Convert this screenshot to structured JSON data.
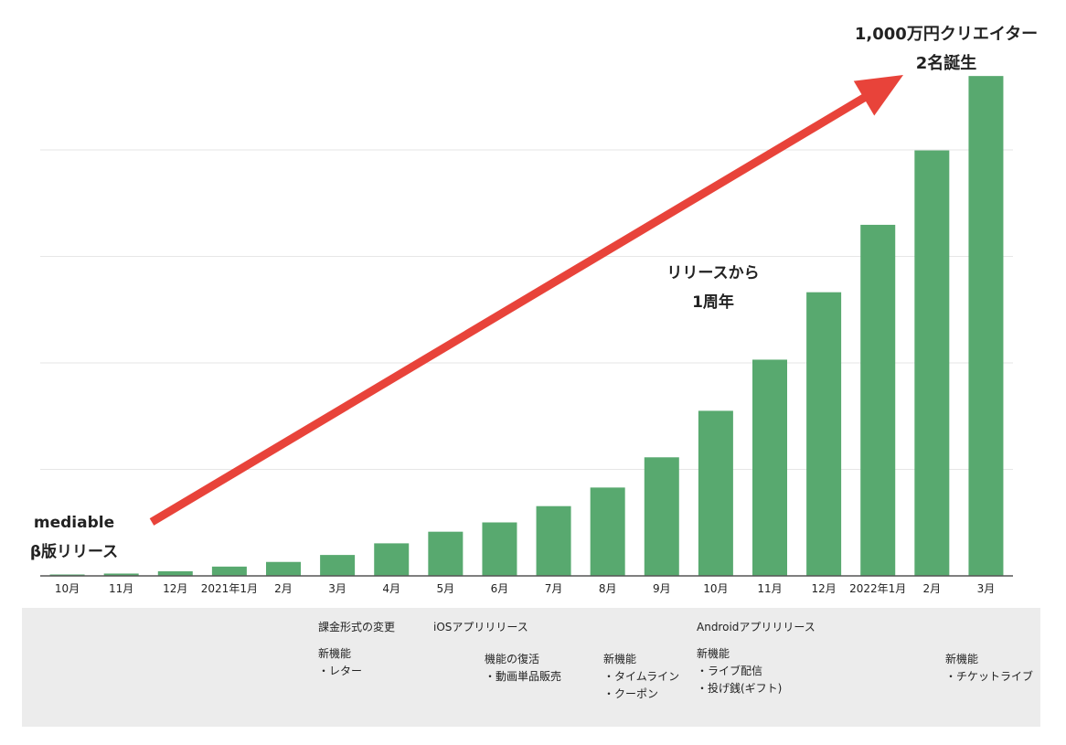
{
  "chart_data": {
    "type": "bar",
    "categories": [
      "10月",
      "11月",
      "12月",
      "2021年1月",
      "2月",
      "3月",
      "4月",
      "5月",
      "6月",
      "7月",
      "8月",
      "9月",
      "10月",
      "11月",
      "12月",
      "2022年1月",
      "2月",
      "3月"
    ],
    "values": [
      0.3,
      0.5,
      1,
      2,
      3,
      4.5,
      7,
      9.5,
      11.5,
      15,
      19,
      25.5,
      35.5,
      46.5,
      61,
      75.5,
      91.5,
      107.5
    ],
    "ylim": [
      0,
      115
    ],
    "grid": true,
    "colors": {
      "bar": "#58a96f",
      "arrow": "#e8433a",
      "grid": "#e6e6e6",
      "axis": "#555555"
    }
  },
  "annotations": {
    "top": [
      "1,000万円クリエイター",
      "2名誕生"
    ],
    "mid": [
      "リリースから",
      "1周年"
    ],
    "left": [
      "mediable",
      "β版リリース"
    ]
  },
  "timeline": [
    {
      "lines": [
        "課金形式の変更",
        "",
        "新機能",
        "・レター"
      ]
    },
    {
      "lines": [
        "iOSアプリリリース"
      ]
    },
    {
      "lines": [
        "機能の復活",
        "・動画単品販売"
      ]
    },
    {
      "lines": [
        "新機能",
        "・タイムライン",
        "・クーポン"
      ]
    },
    {
      "lines": [
        "Androidアプリリリース",
        "",
        "新機能",
        "・ライブ配信",
        "・投げ銭(ギフト)"
      ]
    },
    {
      "lines": [
        "新機能",
        "・チケットライブ"
      ]
    }
  ]
}
